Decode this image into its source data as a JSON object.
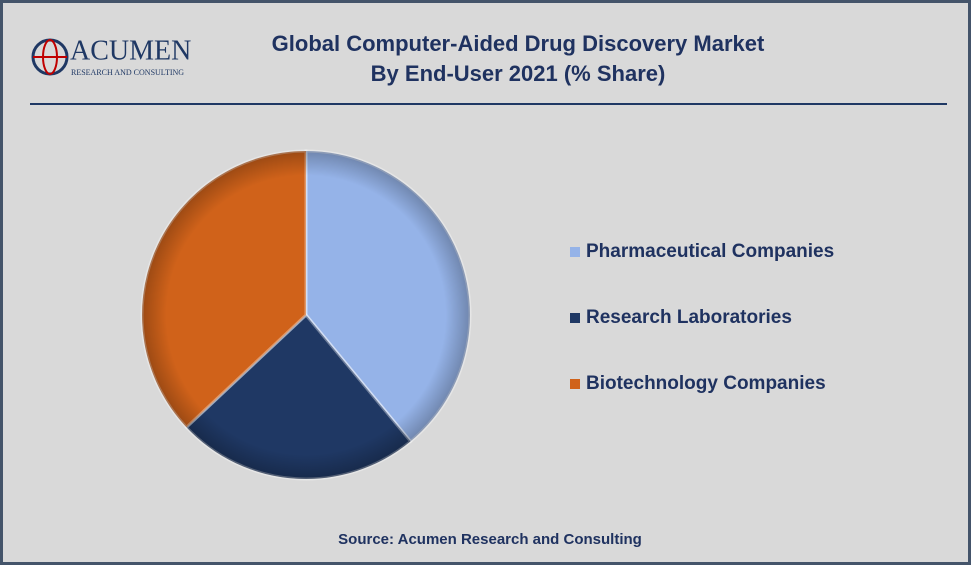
{
  "logo": {
    "name": "ACUMEN",
    "tagline": "RESEARCH AND CONSULTING"
  },
  "chart_data": {
    "type": "pie",
    "title": [
      "Global Computer-Aided Drug Discovery Market",
      "By End-User 2021 (% Share)"
    ],
    "categories": [
      "Pharmaceutical Companies",
      "Research Laboratories",
      "Biotechnology Companies"
    ],
    "values": [
      39,
      24,
      37
    ],
    "colors": [
      "#95b3e8",
      "#1f3864",
      "#d0621a"
    ],
    "legend": "right",
    "source": "Source: Acumen Research and Consulting"
  }
}
